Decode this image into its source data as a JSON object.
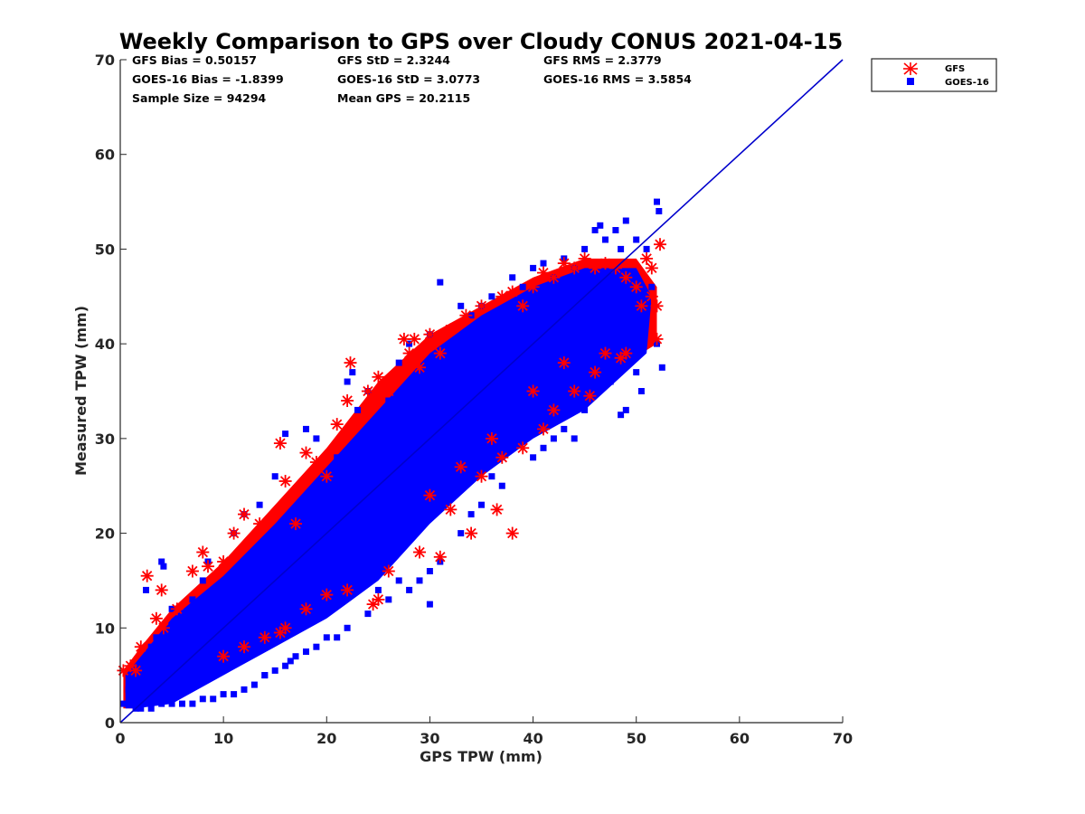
{
  "chart_data": {
    "type": "scatter",
    "title": "Weekly Comparison to GPS over Cloudy CONUS 2021-04-15",
    "xlabel": "GPS TPW (mm)",
    "ylabel": "Measured TPW (mm)",
    "xlim": [
      0,
      70
    ],
    "ylim": [
      0,
      70
    ],
    "xticks": [
      "0",
      "10",
      "20",
      "30",
      "40",
      "50",
      "60",
      "70"
    ],
    "yticks": [
      "0",
      "10",
      "20",
      "30",
      "40",
      "50",
      "60",
      "70"
    ],
    "grid": false,
    "legend_position": "outside top-right",
    "stats": [
      "GFS Bias = 0.50157",
      "GFS StD = 2.3244",
      "GFS RMS = 2.3779",
      "GOES-16 Bias = -1.8399",
      "GOES-16 StD = 3.0773",
      "GOES-16 RMS = 3.5854",
      "Sample Size = 94294",
      "Mean GPS = 20.2115"
    ],
    "reference_line": {
      "x": [
        0,
        70
      ],
      "y": [
        0,
        70
      ],
      "color": "#0000cc"
    },
    "series": [
      {
        "name": "GFS",
        "marker": "asterisk",
        "color": "#ff0000",
        "points": [
          [
            0.3,
            5.5
          ],
          [
            1,
            6
          ],
          [
            1.5,
            5.5
          ],
          [
            2,
            8
          ],
          [
            2.6,
            15.5
          ],
          [
            3.5,
            11
          ],
          [
            4,
            14
          ],
          [
            4.2,
            10
          ],
          [
            5.5,
            12
          ],
          [
            7,
            16
          ],
          [
            8,
            18
          ],
          [
            8.5,
            16.5
          ],
          [
            10,
            17
          ],
          [
            11,
            20
          ],
          [
            12,
            22
          ],
          [
            13.5,
            21
          ],
          [
            15.5,
            29.5
          ],
          [
            16,
            25.5
          ],
          [
            17,
            21
          ],
          [
            18,
            28.5
          ],
          [
            19,
            27.5
          ],
          [
            20,
            26
          ],
          [
            21,
            31.5
          ],
          [
            22,
            34
          ],
          [
            22.3,
            38
          ],
          [
            23,
            32
          ],
          [
            24,
            35
          ],
          [
            25,
            36.5
          ],
          [
            26,
            35
          ],
          [
            27.5,
            40.5
          ],
          [
            28,
            39
          ],
          [
            28.5,
            40.5
          ],
          [
            29,
            37.5
          ],
          [
            30,
            41
          ],
          [
            31,
            39
          ],
          [
            32,
            41.5
          ],
          [
            33.5,
            43
          ],
          [
            35,
            44
          ],
          [
            37,
            45
          ],
          [
            38,
            45.5
          ],
          [
            39,
            44
          ],
          [
            40,
            46
          ],
          [
            41,
            47.5
          ],
          [
            42,
            47
          ],
          [
            43,
            48.5
          ],
          [
            44,
            48
          ],
          [
            45,
            49
          ],
          [
            46,
            48
          ],
          [
            47,
            48.5
          ],
          [
            48,
            48
          ],
          [
            49,
            47
          ],
          [
            50,
            46
          ],
          [
            50.5,
            44
          ],
          [
            51,
            49
          ],
          [
            51.5,
            45
          ],
          [
            52,
            44
          ],
          [
            52.3,
            50.5
          ],
          [
            52,
            40.5
          ],
          [
            51.5,
            48
          ],
          [
            47,
            39
          ],
          [
            48.5,
            38.5
          ],
          [
            49,
            39
          ],
          [
            46,
            37
          ],
          [
            45.5,
            34.5
          ],
          [
            44,
            35
          ],
          [
            42,
            33
          ],
          [
            41,
            31
          ],
          [
            39,
            29
          ],
          [
            37,
            28
          ],
          [
            35,
            26
          ],
          [
            36.5,
            22.5
          ],
          [
            34,
            20
          ],
          [
            38,
            20
          ],
          [
            32,
            22.5
          ],
          [
            31,
            17.5
          ],
          [
            29,
            18
          ],
          [
            26,
            16
          ],
          [
            25,
            13
          ],
          [
            24.5,
            12.5
          ],
          [
            22,
            14
          ],
          [
            20,
            13.5
          ],
          [
            18,
            12
          ],
          [
            16,
            10
          ],
          [
            14,
            9
          ],
          [
            12,
            8
          ],
          [
            10,
            7
          ],
          [
            15.5,
            9.5
          ],
          [
            30,
            24
          ],
          [
            33,
            27
          ],
          [
            36,
            30
          ],
          [
            40,
            35
          ],
          [
            43,
            38
          ]
        ]
      },
      {
        "name": "GOES-16",
        "marker": "square",
        "color": "#0000ff",
        "points": [
          [
            0.3,
            2
          ],
          [
            0.8,
            3.5
          ],
          [
            1.5,
            1.5
          ],
          [
            2,
            4
          ],
          [
            2.5,
            14
          ],
          [
            3,
            8
          ],
          [
            3.5,
            9
          ],
          [
            4,
            17
          ],
          [
            4.2,
            16.5
          ],
          [
            5,
            12
          ],
          [
            5.5,
            6
          ],
          [
            6,
            9
          ],
          [
            7,
            13
          ],
          [
            8,
            15
          ],
          [
            8.5,
            17
          ],
          [
            9,
            8
          ],
          [
            10,
            14
          ],
          [
            11,
            20
          ],
          [
            12,
            22
          ],
          [
            13,
            16
          ],
          [
            13.5,
            23
          ],
          [
            14,
            5
          ],
          [
            15,
            26
          ],
          [
            16,
            30.5
          ],
          [
            16.5,
            6.5
          ],
          [
            17,
            22
          ],
          [
            18,
            31
          ],
          [
            19,
            30
          ],
          [
            20,
            24
          ],
          [
            21,
            28
          ],
          [
            22,
            36
          ],
          [
            22.5,
            37
          ],
          [
            23,
            33
          ],
          [
            24,
            35
          ],
          [
            25,
            30
          ],
          [
            26,
            34
          ],
          [
            27,
            38
          ],
          [
            28,
            40
          ],
          [
            29,
            36
          ],
          [
            30,
            41
          ],
          [
            31,
            46.5
          ],
          [
            32,
            40
          ],
          [
            33,
            44
          ],
          [
            34,
            43
          ],
          [
            35,
            44
          ],
          [
            36,
            45
          ],
          [
            37,
            41
          ],
          [
            38,
            47
          ],
          [
            39,
            46
          ],
          [
            40,
            48
          ],
          [
            41,
            48.5
          ],
          [
            42,
            47
          ],
          [
            43,
            49
          ],
          [
            44,
            48
          ],
          [
            45,
            50
          ],
          [
            46,
            52
          ],
          [
            46.5,
            52.5
          ],
          [
            47,
            51
          ],
          [
            48,
            52
          ],
          [
            48.5,
            50
          ],
          [
            49,
            53
          ],
          [
            50,
            51
          ],
          [
            51,
            50
          ],
          [
            52,
            55
          ],
          [
            52.2,
            54
          ],
          [
            51.5,
            46
          ],
          [
            52,
            40
          ],
          [
            52.5,
            37.5
          ],
          [
            50,
            37
          ],
          [
            50.5,
            35
          ],
          [
            49,
            33
          ],
          [
            48.5,
            32.5
          ],
          [
            46,
            35
          ],
          [
            45,
            33
          ],
          [
            44,
            30
          ],
          [
            43,
            31
          ],
          [
            42,
            30
          ],
          [
            41,
            29
          ],
          [
            40,
            28
          ],
          [
            38,
            29
          ],
          [
            37,
            25
          ],
          [
            36,
            26
          ],
          [
            35,
            23
          ],
          [
            34,
            22
          ],
          [
            33,
            20
          ],
          [
            31,
            17
          ],
          [
            30,
            16
          ],
          [
            29,
            15
          ],
          [
            28,
            14
          ],
          [
            27,
            15
          ],
          [
            26,
            13
          ],
          [
            25,
            14
          ],
          [
            24,
            11.5
          ],
          [
            22,
            10
          ],
          [
            21,
            9
          ],
          [
            20,
            9
          ],
          [
            19,
            8
          ],
          [
            18,
            7.5
          ],
          [
            17,
            7
          ],
          [
            16,
            6
          ],
          [
            15,
            5.5
          ],
          [
            14,
            5
          ],
          [
            13,
            4
          ],
          [
            12,
            3.5
          ],
          [
            11,
            3
          ],
          [
            10,
            3
          ],
          [
            9,
            2.5
          ],
          [
            8,
            2.5
          ],
          [
            7,
            2
          ],
          [
            6,
            2
          ],
          [
            5,
            2
          ],
          [
            4,
            2
          ],
          [
            3,
            1.5
          ],
          [
            2,
            1.5
          ],
          [
            30,
            12.5
          ],
          [
            47.5,
            36
          ],
          [
            45.5,
            37
          ],
          [
            20,
            20
          ],
          [
            25,
            25
          ],
          [
            30,
            30
          ],
          [
            35,
            35
          ],
          [
            40,
            40
          ],
          [
            15,
            15
          ],
          [
            10,
            10
          ],
          [
            5,
            5
          ],
          [
            22,
            18
          ],
          [
            28,
            25
          ],
          [
            33,
            30
          ],
          [
            38,
            36
          ],
          [
            18,
            20
          ],
          [
            24,
            26
          ],
          [
            29,
            32
          ],
          [
            34,
            38
          ],
          [
            12,
            13
          ],
          [
            8,
            9
          ],
          [
            42,
            41
          ],
          [
            45,
            44
          ]
        ]
      }
    ]
  }
}
